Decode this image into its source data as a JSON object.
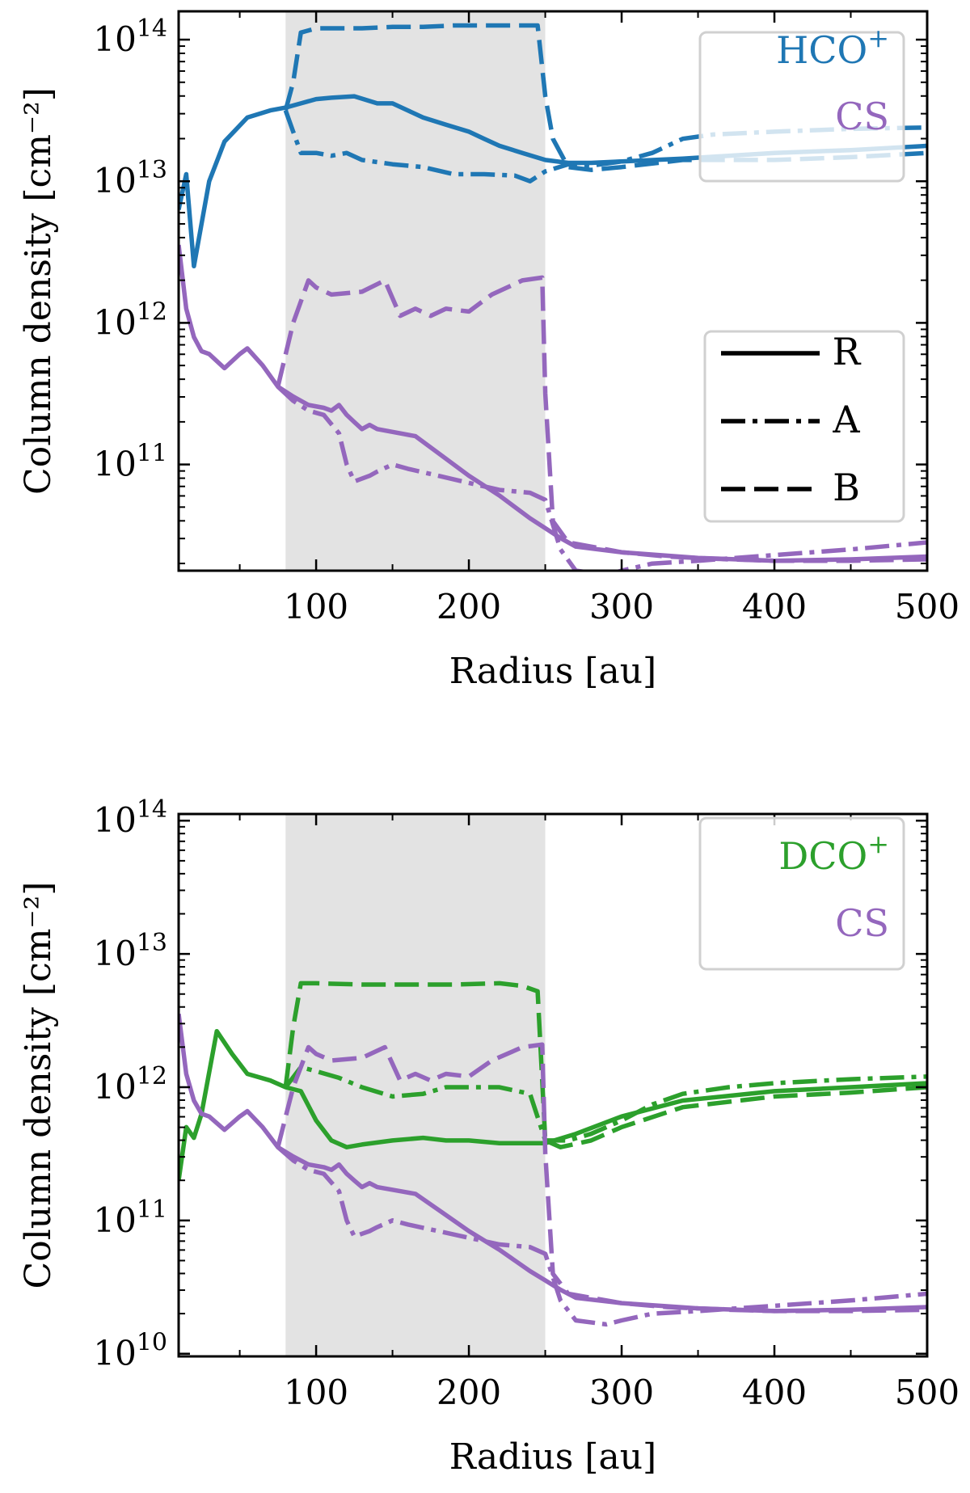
{
  "chart_data": [
    {
      "type": "line",
      "xlabel": "Radius [au]",
      "ylabel": "Column density [cm⁻²]",
      "xlim": [
        10,
        500
      ],
      "ylim_log10": [
        10.25,
        14.2
      ],
      "yscale": "log",
      "x_ticks": [
        "100",
        "200",
        "300",
        "400",
        "500"
      ],
      "y_ticks": [
        {
          "exp": 11,
          "label": "10",
          "sup": "11"
        },
        {
          "exp": 12,
          "label": "10",
          "sup": "12"
        },
        {
          "exp": 13,
          "label": "10",
          "sup": "13"
        },
        {
          "exp": 14,
          "label": "10",
          "sup": "14"
        }
      ],
      "shaded_region": {
        "x_from": 80,
        "x_to": 250
      },
      "species_legend": [
        {
          "label": "HCO",
          "sup": "+",
          "color": "#1f77b4"
        },
        {
          "label": "CS",
          "sup": "",
          "color": "#9467bd"
        }
      ],
      "style_legend": [
        {
          "label": "R",
          "dash": "solid"
        },
        {
          "label": "A",
          "dash": "dashdot"
        },
        {
          "label": "B",
          "dash": "dashed"
        }
      ],
      "series": [
        {
          "name": "HCO+ R",
          "color": "#1f77b4",
          "dash": "solid",
          "x": [
            10,
            15,
            20,
            30,
            40,
            55,
            70,
            80,
            90,
            100,
            110,
            125,
            140,
            150,
            160,
            170,
            185,
            200,
            210,
            220,
            235,
            250,
            265,
            280,
            300,
            340,
            400,
            450,
            500
          ],
          "log_y": [
            12.8,
            13.05,
            12.4,
            13.0,
            13.28,
            13.45,
            13.5,
            13.52,
            13.55,
            13.58,
            13.59,
            13.6,
            13.55,
            13.55,
            13.5,
            13.45,
            13.4,
            13.35,
            13.3,
            13.25,
            13.2,
            13.15,
            13.13,
            13.13,
            13.14,
            13.16,
            13.2,
            13.22,
            13.25
          ]
        },
        {
          "name": "HCO+ A",
          "color": "#1f77b4",
          "dash": "dashdot",
          "x": [
            80,
            85,
            90,
            100,
            110,
            120,
            130,
            150,
            170,
            190,
            210,
            230,
            240,
            250,
            265,
            280,
            300,
            320,
            340,
            360,
            400,
            450,
            500
          ],
          "log_y": [
            13.5,
            13.35,
            13.2,
            13.2,
            13.18,
            13.2,
            13.15,
            13.12,
            13.1,
            13.05,
            13.05,
            13.04,
            13.0,
            13.07,
            13.12,
            13.11,
            13.14,
            13.2,
            13.3,
            13.33,
            13.35,
            13.37,
            13.38
          ]
        },
        {
          "name": "HCO+ B",
          "color": "#1f77b4",
          "dash": "dashed",
          "x": [
            80,
            85,
            90,
            100,
            110,
            130,
            150,
            170,
            190,
            210,
            230,
            245,
            250,
            255,
            265,
            280,
            300,
            340,
            400,
            450,
            500
          ],
          "log_y": [
            13.5,
            13.7,
            14.05,
            14.08,
            14.08,
            14.08,
            14.09,
            14.09,
            14.1,
            14.1,
            14.1,
            14.1,
            13.6,
            13.3,
            13.1,
            13.08,
            13.1,
            13.15,
            13.15,
            13.17,
            13.2
          ]
        },
        {
          "name": "CS R",
          "color": "#9467bd",
          "dash": "solid",
          "x": [
            10,
            15,
            20,
            25,
            30,
            40,
            50,
            55,
            65,
            75,
            85,
            95,
            105,
            110,
            115,
            120,
            125,
            130,
            135,
            140,
            155,
            165,
            180,
            200,
            220,
            240,
            250,
            260,
            270,
            300,
            350,
            400,
            450,
            500
          ],
          "log_y": [
            12.55,
            12.1,
            11.9,
            11.8,
            11.78,
            11.68,
            11.78,
            11.82,
            11.7,
            11.55,
            11.48,
            11.42,
            11.4,
            11.38,
            11.42,
            11.35,
            11.3,
            11.25,
            11.28,
            11.25,
            11.22,
            11.2,
            11.08,
            10.92,
            10.78,
            10.62,
            10.55,
            10.48,
            10.42,
            10.38,
            10.34,
            10.32,
            10.33,
            10.35
          ]
        },
        {
          "name": "CS A",
          "color": "#9467bd",
          "dash": "dashdot",
          "x": [
            75,
            85,
            95,
            105,
            115,
            120,
            125,
            130,
            135,
            140,
            150,
            160,
            180,
            200,
            220,
            240,
            250,
            260,
            270,
            290,
            300,
            320,
            350,
            400,
            450,
            500
          ],
          "log_y": [
            11.55,
            11.45,
            11.38,
            11.35,
            11.22,
            11.0,
            10.88,
            10.9,
            10.92,
            10.95,
            11.0,
            10.97,
            10.92,
            10.87,
            10.82,
            10.8,
            10.75,
            10.4,
            10.25,
            10.22,
            10.25,
            10.3,
            10.32,
            10.36,
            10.4,
            10.45
          ]
        },
        {
          "name": "CS B",
          "color": "#9467bd",
          "dash": "dashed",
          "x": [
            75,
            85,
            95,
            100,
            110,
            130,
            145,
            155,
            165,
            175,
            185,
            200,
            215,
            235,
            248,
            250,
            255,
            265,
            280,
            300,
            330,
            370,
            400,
            450,
            500
          ],
          "log_y": [
            11.55,
            12.0,
            12.3,
            12.25,
            12.2,
            12.22,
            12.3,
            12.05,
            12.1,
            12.05,
            12.1,
            12.08,
            12.2,
            12.3,
            12.32,
            11.5,
            10.6,
            10.45,
            10.42,
            10.38,
            10.35,
            10.33,
            10.32,
            10.32,
            10.33
          ]
        }
      ]
    },
    {
      "type": "line",
      "xlabel": "Radius [au]",
      "ylabel": "Column density [cm⁻²]",
      "xlim": [
        10,
        500
      ],
      "ylim_log10": [
        9.98,
        14.05
      ],
      "yscale": "log",
      "x_ticks": [
        "100",
        "200",
        "300",
        "400",
        "500"
      ],
      "y_ticks": [
        {
          "exp": 10,
          "label": "10",
          "sup": "10"
        },
        {
          "exp": 11,
          "label": "10",
          "sup": "11"
        },
        {
          "exp": 12,
          "label": "10",
          "sup": "12"
        },
        {
          "exp": 13,
          "label": "10",
          "sup": "13"
        },
        {
          "exp": 14,
          "label": "10",
          "sup": "14"
        }
      ],
      "shaded_region": {
        "x_from": 80,
        "x_to": 250
      },
      "species_legend": [
        {
          "label": "DCO",
          "sup": "+",
          "color": "#2ca02c"
        },
        {
          "label": "CS",
          "sup": "",
          "color": "#9467bd"
        }
      ],
      "series": [
        {
          "name": "DCO+ R",
          "color": "#2ca02c",
          "dash": "solid",
          "x": [
            10,
            15,
            20,
            25,
            35,
            45,
            55,
            70,
            80,
            90,
            100,
            110,
            120,
            130,
            150,
            170,
            185,
            200,
            220,
            240,
            250,
            270,
            300,
            340,
            400,
            450,
            500
          ],
          "log_y": [
            11.3,
            11.7,
            11.62,
            11.8,
            12.42,
            12.25,
            12.1,
            12.05,
            12.0,
            11.97,
            11.75,
            11.6,
            11.55,
            11.57,
            11.6,
            11.62,
            11.6,
            11.6,
            11.58,
            11.58,
            11.58,
            11.65,
            11.78,
            11.9,
            11.97,
            12.0,
            12.03
          ]
        },
        {
          "name": "DCO+ A",
          "color": "#2ca02c",
          "dash": "dashdot",
          "x": [
            80,
            90,
            100,
            115,
            130,
            150,
            170,
            185,
            200,
            220,
            240,
            250,
            265,
            280,
            300,
            320,
            340,
            370,
            400,
            450,
            500
          ],
          "log_y": [
            12.0,
            12.15,
            12.12,
            12.07,
            12.0,
            11.93,
            11.95,
            12.0,
            12.0,
            12.0,
            11.95,
            11.6,
            11.6,
            11.65,
            11.75,
            11.87,
            11.95,
            12.0,
            12.03,
            12.06,
            12.08
          ]
        },
        {
          "name": "DCO+ B",
          "color": "#2ca02c",
          "dash": "dashed",
          "x": [
            80,
            85,
            90,
            100,
            130,
            160,
            190,
            220,
            235,
            245,
            250,
            260,
            280,
            300,
            340,
            400,
            450,
            500
          ],
          "log_y": [
            12.0,
            12.45,
            12.78,
            12.78,
            12.77,
            12.77,
            12.77,
            12.78,
            12.76,
            12.72,
            11.6,
            11.55,
            11.6,
            11.7,
            11.85,
            11.93,
            11.96,
            12.0
          ]
        },
        {
          "name": "CS R",
          "color": "#9467bd",
          "dash": "solid",
          "x": [
            10,
            15,
            20,
            25,
            30,
            40,
            50,
            55,
            65,
            75,
            85,
            95,
            105,
            110,
            115,
            120,
            125,
            130,
            135,
            140,
            155,
            165,
            180,
            200,
            220,
            240,
            250,
            260,
            270,
            300,
            350,
            400,
            450,
            500
          ],
          "log_y": [
            12.55,
            12.1,
            11.9,
            11.8,
            11.78,
            11.68,
            11.78,
            11.82,
            11.7,
            11.55,
            11.48,
            11.42,
            11.4,
            11.38,
            11.42,
            11.35,
            11.3,
            11.25,
            11.28,
            11.25,
            11.22,
            11.2,
            11.08,
            10.92,
            10.78,
            10.62,
            10.55,
            10.48,
            10.42,
            10.38,
            10.34,
            10.32,
            10.33,
            10.35
          ]
        },
        {
          "name": "CS A",
          "color": "#9467bd",
          "dash": "dashdot",
          "x": [
            75,
            85,
            95,
            105,
            115,
            120,
            125,
            130,
            135,
            140,
            150,
            160,
            180,
            200,
            220,
            240,
            250,
            260,
            270,
            290,
            300,
            320,
            350,
            400,
            450,
            500
          ],
          "log_y": [
            11.55,
            11.45,
            11.38,
            11.35,
            11.22,
            11.0,
            10.88,
            10.9,
            10.92,
            10.95,
            11.0,
            10.97,
            10.92,
            10.87,
            10.82,
            10.8,
            10.75,
            10.4,
            10.25,
            10.22,
            10.25,
            10.3,
            10.32,
            10.36,
            10.4,
            10.45
          ]
        },
        {
          "name": "CS B",
          "color": "#9467bd",
          "dash": "dashed",
          "x": [
            75,
            85,
            95,
            100,
            110,
            130,
            145,
            155,
            165,
            175,
            185,
            200,
            215,
            235,
            248,
            250,
            255,
            265,
            280,
            300,
            330,
            370,
            400,
            450,
            500
          ],
          "log_y": [
            11.55,
            12.0,
            12.3,
            12.25,
            12.2,
            12.22,
            12.3,
            12.05,
            12.1,
            12.05,
            12.1,
            12.08,
            12.2,
            12.3,
            12.32,
            11.5,
            10.6,
            10.45,
            10.42,
            10.38,
            10.35,
            10.33,
            10.32,
            10.32,
            10.33
          ]
        }
      ]
    }
  ]
}
